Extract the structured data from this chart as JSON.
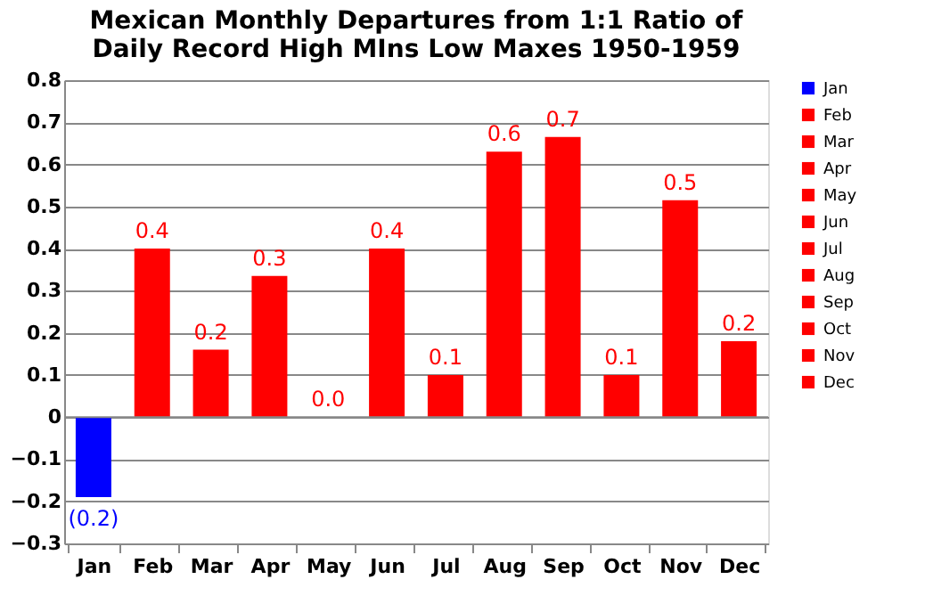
{
  "chart_data": {
    "type": "bar",
    "title": "Mexican Monthly Departures from 1:1 Ratio of Daily Record High MIns Low Maxes 1950-1959",
    "categories": [
      "Jan",
      "Feb",
      "Mar",
      "Apr",
      "May",
      "Jun",
      "Jul",
      "Aug",
      "Sep",
      "Oct",
      "Nov",
      "Dec"
    ],
    "series": [
      {
        "name": "Jan",
        "color": "#0000ff",
        "values": [
          -0.19,
          null,
          null,
          null,
          null,
          null,
          null,
          null,
          null,
          null,
          null,
          null
        ],
        "value_labels": [
          "(0.2)",
          null,
          null,
          null,
          null,
          null,
          null,
          null,
          null,
          null,
          null,
          null
        ]
      },
      {
        "name": "Feb",
        "color": "#ff0000",
        "values": [
          null,
          0.4,
          null,
          null,
          null,
          null,
          null,
          null,
          null,
          null,
          null,
          null
        ],
        "value_labels": [
          null,
          "0.4",
          null,
          null,
          null,
          null,
          null,
          null,
          null,
          null,
          null,
          null
        ]
      },
      {
        "name": "Mar",
        "color": "#ff0000",
        "values": [
          null,
          null,
          0.16,
          null,
          null,
          null,
          null,
          null,
          null,
          null,
          null,
          null
        ],
        "value_labels": [
          null,
          null,
          "0.2",
          null,
          null,
          null,
          null,
          null,
          null,
          null,
          null,
          null
        ]
      },
      {
        "name": "Apr",
        "color": "#ff0000",
        "values": [
          null,
          null,
          null,
          0.335,
          null,
          null,
          null,
          null,
          null,
          null,
          null,
          null
        ],
        "value_labels": [
          null,
          null,
          null,
          "0.3",
          null,
          null,
          null,
          null,
          null,
          null,
          null,
          null
        ]
      },
      {
        "name": "May",
        "color": "#ff0000",
        "values": [
          null,
          null,
          null,
          null,
          0.0,
          null,
          null,
          null,
          null,
          null,
          null,
          null
        ],
        "value_labels": [
          null,
          null,
          null,
          null,
          "0.0",
          null,
          null,
          null,
          null,
          null,
          null,
          null
        ]
      },
      {
        "name": "Jun",
        "color": "#ff0000",
        "values": [
          null,
          null,
          null,
          null,
          null,
          0.4,
          null,
          null,
          null,
          null,
          null,
          null
        ],
        "value_labels": [
          null,
          null,
          null,
          null,
          null,
          "0.4",
          null,
          null,
          null,
          null,
          null,
          null
        ]
      },
      {
        "name": "Jul",
        "color": "#ff0000",
        "values": [
          null,
          null,
          null,
          null,
          null,
          null,
          0.1,
          null,
          null,
          null,
          null,
          null
        ],
        "value_labels": [
          null,
          null,
          null,
          null,
          null,
          null,
          "0.1",
          null,
          null,
          null,
          null,
          null
        ]
      },
      {
        "name": "Aug",
        "color": "#ff0000",
        "values": [
          null,
          null,
          null,
          null,
          null,
          null,
          null,
          0.63,
          null,
          null,
          null,
          null
        ],
        "value_labels": [
          null,
          null,
          null,
          null,
          null,
          null,
          null,
          "0.6",
          null,
          null,
          null,
          null
        ]
      },
      {
        "name": "Sep",
        "color": "#ff0000",
        "values": [
          null,
          null,
          null,
          null,
          null,
          null,
          null,
          null,
          0.665,
          null,
          null,
          null
        ],
        "value_labels": [
          null,
          null,
          null,
          null,
          null,
          null,
          null,
          null,
          "0.7",
          null,
          null,
          null
        ]
      },
      {
        "name": "Oct",
        "color": "#ff0000",
        "values": [
          null,
          null,
          null,
          null,
          null,
          null,
          null,
          null,
          null,
          0.1,
          null,
          null
        ],
        "value_labels": [
          null,
          null,
          null,
          null,
          null,
          null,
          null,
          null,
          null,
          "0.1",
          null,
          null
        ]
      },
      {
        "name": "Nov",
        "color": "#ff0000",
        "values": [
          null,
          null,
          null,
          null,
          null,
          null,
          null,
          null,
          null,
          null,
          0.515,
          null
        ],
        "value_labels": [
          null,
          null,
          null,
          null,
          null,
          null,
          null,
          null,
          null,
          null,
          "0.5",
          null
        ]
      },
      {
        "name": "Dec",
        "color": "#ff0000",
        "values": [
          null,
          null,
          null,
          null,
          null,
          null,
          null,
          null,
          null,
          null,
          null,
          0.18
        ],
        "value_labels": [
          null,
          null,
          null,
          null,
          null,
          null,
          null,
          null,
          null,
          null,
          null,
          "0.2"
        ]
      }
    ],
    "ylim": [
      -0.3,
      0.8
    ],
    "yticks": [
      -0.3,
      -0.2,
      -0.1,
      0,
      0.1,
      0.2,
      0.3,
      0.4,
      0.5,
      0.6,
      0.7,
      0.8
    ],
    "grid": "y",
    "legend": "right"
  }
}
